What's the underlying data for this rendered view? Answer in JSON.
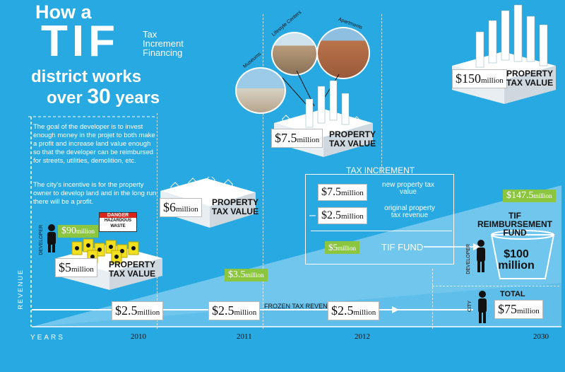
{
  "title": {
    "line1": "How a",
    "tif": "TIF",
    "tif_full": [
      "Tax",
      "Increment",
      "Financing"
    ],
    "line3": "district works",
    "line4_a": "over ",
    "line4_num": "30",
    "line4_b": " years"
  },
  "intro": {
    "para1": "The goal of the developer is to invest enough money in the projet to both make a profit and increase land value enough so that the developer can be reimbursed for streets, utilities, demolition, etc.",
    "para2": "The city's incentive is for the property owner to develop land and  in the long run there will be a profit."
  },
  "labels": {
    "developer": "DEVELOPER",
    "city": "CITY",
    "revenue": "REVENUE",
    "years": "YEARS",
    "frozen": "FROZEN TAX REVENUE",
    "danger": "DANGER",
    "hazardous": "HAZARDOUS WASTE",
    "museums": "Museums",
    "lifestyle": "Lifestyle Centers",
    "apartments": "Apartments"
  },
  "stages": [
    {
      "year": "2010",
      "value": "$5",
      "unit": "million",
      "label": "PROPERTY TAX VALUE",
      "invest": "$90",
      "invest_unit": "million"
    },
    {
      "year": "2011",
      "value": "$6",
      "unit": "million",
      "label": "PROPERTY TAX VALUE",
      "invest": "$3.5",
      "invest_unit": "million"
    },
    {
      "year": "2012",
      "value": "$7.5",
      "unit": "million",
      "label": "PROPERTY TAX VALUE"
    },
    {
      "year": "2030",
      "value": "$150",
      "unit": "million",
      "label": "PROPERTY TAX VALUE",
      "invest": "$147.5",
      "invest_unit": "million"
    }
  ],
  "frozen_revenue": [
    {
      "value": "$2.5",
      "unit": "million"
    },
    {
      "value": "$2.5",
      "unit": "million"
    },
    {
      "value": "$2.5",
      "unit": "million"
    }
  ],
  "increment": {
    "title": "TAX INCREMENT",
    "new_value": "$7.5",
    "new_unit": "million",
    "new_label": "new property tax value",
    "minus": "–",
    "orig_value": "$2.5",
    "orig_unit": "million",
    "orig_label": "original property tax revenue",
    "fund_value": "$5",
    "fund_unit": "million",
    "fund_label": "TIF FUND"
  },
  "fund": {
    "title": "TIF REIMBURSEMENT FUND",
    "value": "$100",
    "unit": "million"
  },
  "city_total": {
    "label": "TOTAL",
    "value": "$75",
    "unit": "million"
  },
  "colors": {
    "background": "#28a9e1",
    "ramp": "#7ccbef",
    "green": "#8cc641",
    "barrel": "#f2e020"
  }
}
